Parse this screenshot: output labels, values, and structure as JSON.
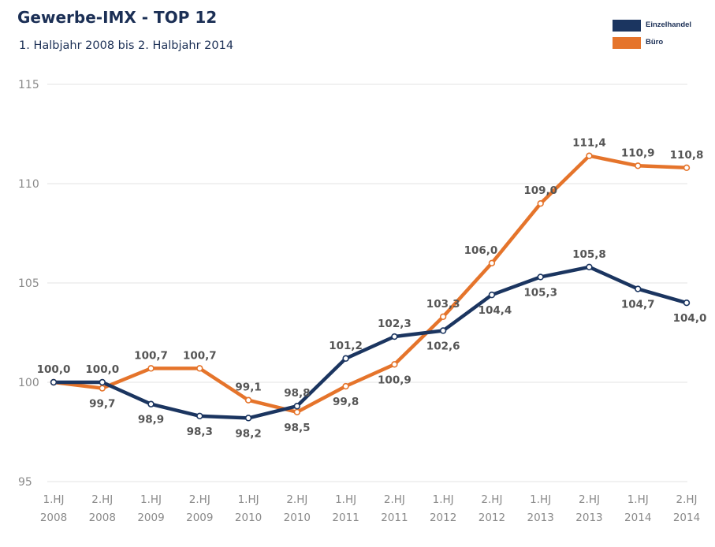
{
  "header": {
    "title": "Gewerbe-IMX - TOP 12",
    "subtitle": "1. Halbjahr 2008 bis 2. Halbjahr 2014"
  },
  "legend": [
    {
      "name": "Einzelhandel",
      "color": "#1b3560"
    },
    {
      "name": "Büro",
      "color": "#e5742b"
    }
  ],
  "chart_data": {
    "type": "line",
    "title": "Gewerbe-IMX - TOP 12",
    "subtitle": "1. Halbjahr 2008 bis 2. Halbjahr 2014",
    "xlabel": "",
    "ylabel": "",
    "ylim": [
      95,
      115
    ],
    "yticks": [
      95,
      100,
      105,
      110,
      115
    ],
    "grid": true,
    "legend_position": "top-right",
    "categories": [
      [
        "1.HJ",
        "2008"
      ],
      [
        "2.HJ",
        "2008"
      ],
      [
        "1.HJ",
        "2009"
      ],
      [
        "2.HJ",
        "2009"
      ],
      [
        "1.HJ",
        "2010"
      ],
      [
        "2.HJ",
        "2010"
      ],
      [
        "1.HJ",
        "2011"
      ],
      [
        "2.HJ",
        "2011"
      ],
      [
        "1.HJ",
        "2012"
      ],
      [
        "2.HJ",
        "2012"
      ],
      [
        "1.HJ",
        "2013"
      ],
      [
        "2.HJ",
        "2013"
      ],
      [
        "1.HJ",
        "2014"
      ],
      [
        "2.HJ",
        "2014"
      ]
    ],
    "series": [
      {
        "name": "Einzelhandel",
        "color": "#1b3560",
        "values": [
          100.0,
          100.0,
          98.9,
          98.3,
          98.2,
          98.8,
          101.2,
          102.3,
          102.6,
          104.4,
          105.3,
          105.8,
          104.7,
          104.0
        ],
        "labels": [
          "100,0",
          "100,0",
          "98,9",
          "98,3",
          "98,2",
          "98,8",
          "101,2",
          "102,3",
          "102,6",
          "104,4",
          "105,3",
          "105,8",
          "104,7",
          "104,0"
        ]
      },
      {
        "name": "Büro",
        "color": "#e5742b",
        "values": [
          100.0,
          99.7,
          100.7,
          100.7,
          99.1,
          98.5,
          99.8,
          100.9,
          103.3,
          106.0,
          109.0,
          111.4,
          110.9,
          110.8
        ],
        "labels": [
          "",
          "99,7",
          "100,7",
          "100,7",
          "99,1",
          "98,5",
          "99,8",
          "100,9",
          "103,3",
          "106,0",
          "109,0",
          "111,4",
          "110,9",
          "110,8"
        ]
      }
    ]
  }
}
